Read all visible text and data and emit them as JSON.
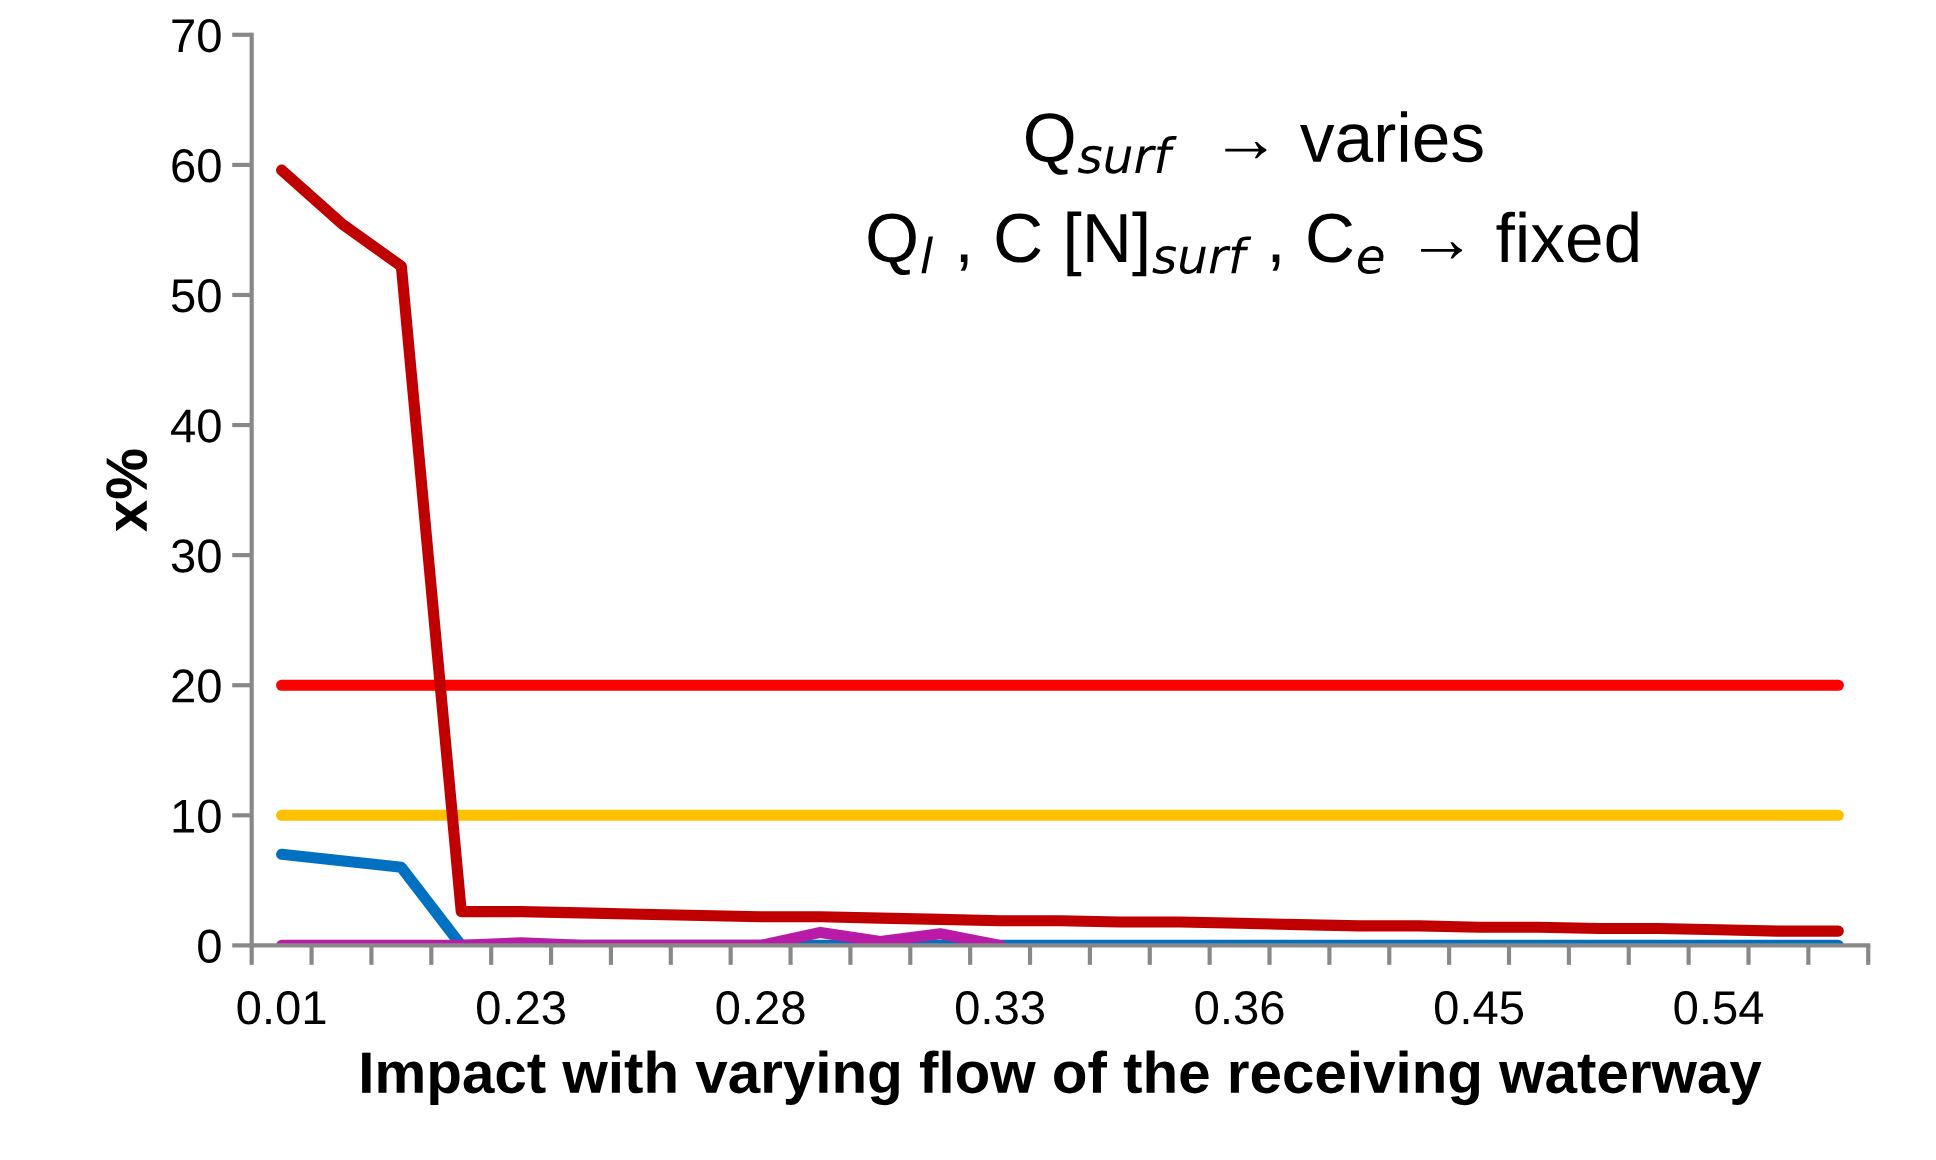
{
  "chart_data": {
    "type": "line",
    "xlabel": "Impact with varying flow of the receiving waterway",
    "ylabel": "x%",
    "categories": [
      "0.01",
      null,
      null,
      null,
      "0.23",
      null,
      null,
      null,
      "0.28",
      null,
      null,
      null,
      "0.33",
      null,
      null,
      null,
      "0.36",
      null,
      null,
      null,
      "0.45",
      null,
      null,
      null,
      "0.54",
      null,
      null
    ],
    "series": [
      {
        "color": "#ff0000",
        "values": [
          20,
          20,
          20,
          20,
          20,
          20,
          20,
          20,
          20,
          20,
          20,
          20,
          20,
          20,
          20,
          20,
          20,
          20,
          20,
          20,
          20,
          20,
          20,
          20,
          20,
          20,
          20
        ]
      },
      {
        "color": "#ffc000",
        "values": [
          10,
          10,
          10,
          10,
          10,
          10,
          10,
          10,
          10,
          10,
          10,
          10,
          10,
          10,
          10,
          10,
          10,
          10,
          10,
          10,
          10,
          10,
          10,
          10,
          10,
          10,
          10
        ]
      },
      {
        "color": "#c00000",
        "values": [
          59.6,
          55.5,
          52.2,
          2.6,
          2.6,
          2.5,
          2.4,
          2.3,
          2.2,
          2.2,
          2.1,
          2.0,
          1.9,
          1.9,
          1.8,
          1.8,
          1.7,
          1.6,
          1.5,
          1.5,
          1.4,
          1.4,
          1.3,
          1.3,
          1.2,
          1.1,
          1.1
        ]
      },
      {
        "color": "#0070c0",
        "values": [
          7.0,
          6.5,
          6.0,
          0,
          0,
          0,
          0,
          0,
          0,
          0,
          0,
          0,
          0,
          0,
          0,
          0,
          0,
          0,
          0,
          0,
          0,
          0,
          0,
          0,
          0,
          0,
          0
        ]
      },
      {
        "color": "#b91aa8",
        "values": [
          0,
          0,
          0,
          0,
          0.2,
          0,
          0,
          0,
          0,
          1.0,
          0.3,
          0.9,
          0,
          null,
          null,
          null,
          null,
          null,
          null,
          null,
          null,
          null,
          null,
          null,
          null,
          null,
          null
        ]
      }
    ],
    "ylim": [
      0,
      70
    ],
    "yticks": [
      0,
      10,
      20,
      30,
      40,
      50,
      60,
      70
    ],
    "grid": false,
    "legend": false,
    "marker": "none",
    "line_style": "solid",
    "annotations": [
      "Q$_{surf}$  → varies",
      "Q$_{l}$ , C [N]$_{surf}$ , C$_{e}$ → fixed"
    ]
  }
}
